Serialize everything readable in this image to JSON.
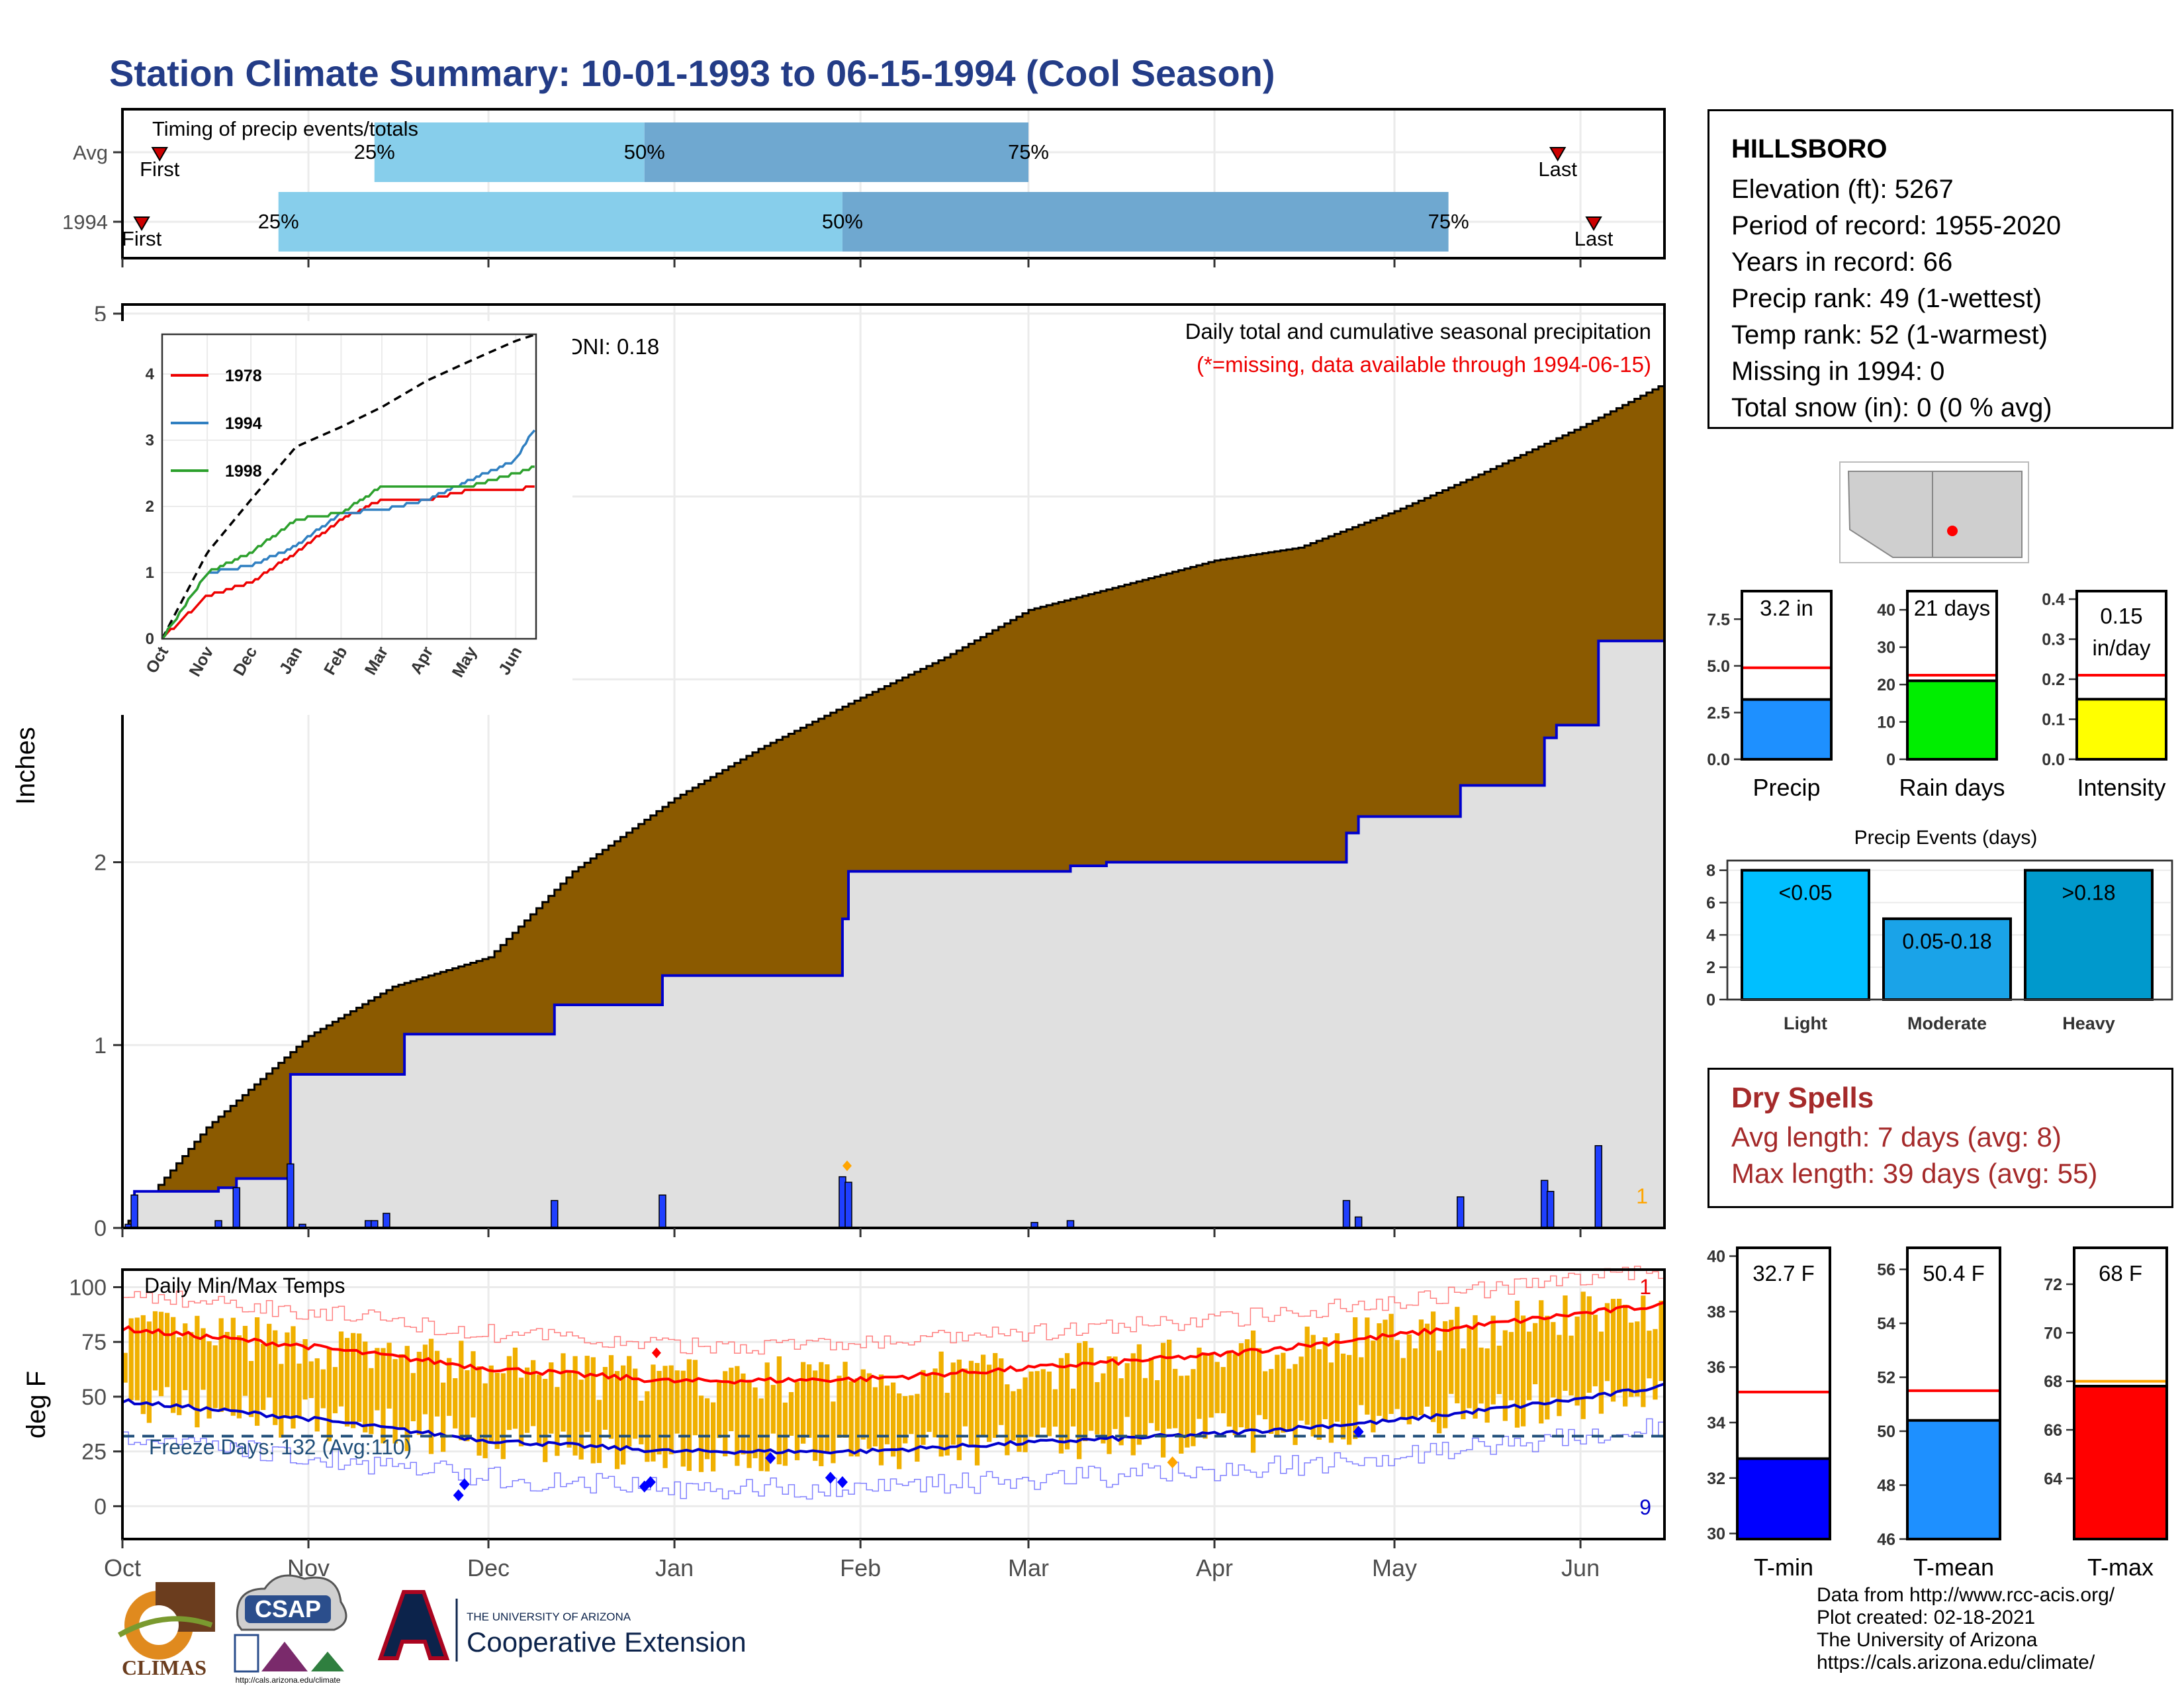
{
  "title": "Station Climate Summary: 10-01-1993 to 06-15-1994 (Cool Season)",
  "timing": {
    "label": "Timing of precip events/totals",
    "rows": [
      {
        "name": "Avg",
        "first_label": "First",
        "last_label": "Last",
        "pct_labels": [
          "25%",
          "50%",
          "75%"
        ],
        "first": "1993-10-05",
        "p25": "1993-11-12",
        "p50": "1993-12-27",
        "p75": "1994-03-01",
        "last": "1994-05-26"
      },
      {
        "name": "1994",
        "first_label": "First",
        "last_label": "Last",
        "pct_labels": [
          "25%",
          "50%",
          "75%"
        ],
        "first": "1993-10-02",
        "p25": "1993-10-27",
        "p50": "1994-01-29",
        "p75": "1994-05-10",
        "last": "1994-06-01"
      }
    ]
  },
  "precip_panel": {
    "ylabel": "Inches",
    "oni": "ONI: 0.18",
    "subtitle": "Daily total and cumulative seasonal precipitation",
    "missing_note": "(*=missing, data available through 1994-06-15)",
    "missing_count": "1",
    "colors": {
      "avg_fill": "#8b5a00",
      "obs_fill": "#e0e0e0",
      "obs_line": "#0000cc",
      "daily_bar": "#1f3fff",
      "missing_marker": "#ffa500"
    }
  },
  "temp_panel": {
    "ylabel": "deg F",
    "label": "Daily Min/Max Temps",
    "freeze_label": "Freeze Days: 132 (Avg:110)",
    "top_count": "1",
    "bottom_count": "9",
    "colors": {
      "range_bar": "#f0b000",
      "avg_max": "#ff0000",
      "avg_min": "#0000cc",
      "freeze_line": "#1f4e79"
    }
  },
  "x_axis": {
    "months": [
      "Oct",
      "Nov",
      "Dec",
      "Jan",
      "Feb",
      "Mar",
      "Apr",
      "May",
      "Jun"
    ]
  },
  "inset": {
    "legend": [
      "1978",
      "1994",
      "1998"
    ],
    "legend_colors": [
      "#ee0000",
      "#2f7fc1",
      "#2ca02c"
    ],
    "months": [
      "Oct",
      "Nov",
      "Dec",
      "Jan",
      "Feb",
      "Mar",
      "Apr",
      "May",
      "Jun"
    ]
  },
  "station": {
    "name": "HILLSBORO",
    "lines": [
      "Elevation (ft): 5267",
      "Period of record: 1955-2020",
      "Years in record: 66",
      "Precip rank: 49 (1-wettest)",
      "Temp rank: 52 (1-warmest)",
      "Missing in 1994: 0",
      "Total snow (in): 0 (0 % avg)"
    ]
  },
  "precip_stats": [
    {
      "label": "Precip",
      "value_text": "3.2 in",
      "value": 3.2,
      "avg": 4.9,
      "ymax": 9.0,
      "ticks": [
        "0.0",
        "2.5",
        "5.0",
        "7.5"
      ],
      "color": "#1e90ff"
    },
    {
      "label": "Rain days",
      "value_text": "21 days",
      "value": 21,
      "avg": 22.5,
      "ymax": 45,
      "ticks": [
        "0",
        "10",
        "20",
        "30",
        "40"
      ],
      "color": "#00ee00"
    },
    {
      "label": "Intensity",
      "value_text": "0.15 in/day",
      "value_lines": [
        "0.15",
        "in/day"
      ],
      "value": 0.153,
      "avg": 0.21,
      "ymax": 0.42,
      "ticks": [
        "0.0",
        "0.1",
        "0.2",
        "0.3",
        "0.4"
      ],
      "color": "#ffff00"
    }
  ],
  "precip_events": {
    "title": "Precip Events (days)",
    "bars": [
      {
        "label": "Light",
        "text": "<0.05",
        "value": 8,
        "color": "#00bfff"
      },
      {
        "label": "Moderate",
        "text": "0.05-0.18",
        "value": 5,
        "color": "#1aa3e8"
      },
      {
        "label": "Heavy",
        "text": ">0.18",
        "value": 8,
        "color": "#0099cc"
      }
    ],
    "ticks": [
      "0",
      "2",
      "4",
      "6",
      "8"
    ]
  },
  "dry_spells": {
    "title": "Dry Spells",
    "avg_line": "Avg length: 7 days (avg: 8)",
    "max_line": "Max length: 39 days (avg: 55)"
  },
  "temp_stats": [
    {
      "label": "T-min",
      "value_text": "32.7 F",
      "value": 32.7,
      "avg": 35.1,
      "ymin": 29.8,
      "ymax": 40.3,
      "ticks": [
        "30",
        "32",
        "34",
        "36",
        "38",
        "40"
      ],
      "color": "#0000ff"
    },
    {
      "label": "T-mean",
      "value_text": "50.4 F",
      "value": 50.4,
      "avg": 51.5,
      "ymin": 46,
      "ymax": 56.8,
      "ticks": [
        "46",
        "48",
        "50",
        "52",
        "54",
        "56"
      ],
      "color": "#1e90ff"
    },
    {
      "label": "T-max",
      "value_text": "68 F",
      "value": 67.8,
      "avg": 68,
      "ymin": 61.5,
      "ymax": 73.5,
      "ticks": [
        "64",
        "66",
        "68",
        "70",
        "72"
      ],
      "color": "#ff0000"
    }
  ],
  "logos": {
    "climas": "CLIMAS",
    "csap": "CSAP",
    "csap_url": "http://cals.arizona.edu/climate",
    "ua_line1": "THE UNIVERSITY OF ARIZONA",
    "ua_line2": "Cooperative Extension",
    "ua_letter": "A"
  },
  "footer": [
    "Data from http://www.rcc-acis.org/",
    "Plot created: 02-18-2021",
    "The University of Arizona",
    "https://cals.arizona.edu/climate/"
  ],
  "chart_data": [
    {
      "type": "area",
      "title": "Daily total and cumulative seasonal precipitation",
      "ylabel": "Inches",
      "ylim": [
        0,
        5
      ],
      "yticks": [
        0,
        1,
        2,
        3,
        4,
        5
      ],
      "xlim": [
        "1993-10-01",
        "1994-06-15"
      ],
      "series": [
        {
          "name": "avg",
          "x": [
            "1993-10-01",
            "1993-10-15",
            "1993-11-01",
            "1993-11-15",
            "1993-12-01",
            "1993-12-15",
            "1994-01-01",
            "1994-01-15",
            "1994-02-01",
            "1994-02-15",
            "1994-03-01",
            "1994-03-15",
            "1994-04-01",
            "1994-04-15",
            "1994-05-01",
            "1994-05-15",
            "1994-06-01",
            "1994-06-15"
          ],
          "values": [
            0.0,
            0.55,
            1.05,
            1.32,
            1.48,
            1.95,
            2.35,
            2.62,
            2.9,
            3.12,
            3.38,
            3.5,
            3.65,
            3.72,
            3.92,
            4.12,
            4.38,
            4.62
          ]
        },
        {
          "name": "1994",
          "x": [
            "1993-10-01",
            "1993-10-03",
            "1993-10-17",
            "1993-10-20",
            "1993-10-29",
            "1993-11-17",
            "1993-12-12",
            "1993-12-30",
            "1994-01-29",
            "1994-01-30",
            "1994-03-02",
            "1994-03-08",
            "1994-03-14",
            "1994-04-23",
            "1994-04-25",
            "1994-05-12",
            "1994-05-26",
            "1994-05-28",
            "1994-06-04"
          ],
          "values": [
            0.0,
            0.2,
            0.22,
            0.27,
            0.84,
            1.06,
            1.22,
            1.38,
            1.69,
            1.95,
            1.95,
            1.98,
            2.0,
            2.16,
            2.25,
            2.42,
            2.68,
            2.75,
            3.21
          ]
        }
      ],
      "daily_precip": {
        "x": [
          "1993-10-02",
          "1993-10-03",
          "1993-10-17",
          "1993-10-20",
          "1993-10-29",
          "1993-10-31",
          "1993-11-11",
          "1993-11-12",
          "1993-11-14",
          "1993-12-12",
          "1993-12-30",
          "1994-01-29",
          "1994-01-30",
          "1994-03-02",
          "1994-03-08",
          "1994-04-23",
          "1994-04-25",
          "1994-05-12",
          "1994-05-26",
          "1994-05-27",
          "1994-06-04"
        ],
        "values": [
          0.02,
          0.18,
          0.04,
          0.22,
          0.35,
          0.02,
          0.04,
          0.04,
          0.08,
          0.15,
          0.18,
          0.28,
          0.25,
          0.03,
          0.04,
          0.15,
          0.06,
          0.17,
          0.26,
          0.2,
          0.45
        ]
      }
    },
    {
      "type": "line",
      "title": "Daily Min/Max Temps",
      "ylabel": "deg F",
      "ylim": [
        -15,
        108
      ],
      "yticks": [
        0,
        25,
        50,
        75,
        100
      ],
      "freeze_line": 32,
      "series": [
        {
          "name": "avg_max",
          "x": [
            "1993-10-01",
            "1993-11-01",
            "1993-12-01",
            "1994-01-01",
            "1994-02-01",
            "1994-03-01",
            "1994-04-01",
            "1994-05-01",
            "1994-06-01",
            "1994-06-15"
          ],
          "values": [
            81,
            73,
            63,
            57,
            58,
            63,
            69,
            78,
            88,
            92
          ]
        },
        {
          "name": "avg_min",
          "x": [
            "1993-10-01",
            "1993-11-01",
            "1993-12-01",
            "1994-01-01",
            "1994-02-01",
            "1994-03-01",
            "1994-04-01",
            "1994-05-01",
            "1994-06-01",
            "1994-06-15"
          ],
          "values": [
            48,
            40,
            30,
            25,
            25,
            29,
            33,
            39,
            49,
            55
          ]
        }
      ]
    },
    {
      "type": "line",
      "ylim": [
        0,
        4.6
      ],
      "series": [
        {
          "name": "avg",
          "x": [
            "1993-10-01",
            "1993-11-01",
            "1993-12-01",
            "1994-01-01",
            "1994-02-01",
            "1994-03-01",
            "1994-04-01",
            "1994-05-01",
            "1994-06-01",
            "1994-06-15"
          ],
          "values": [
            0.0,
            1.3,
            2.1,
            2.9,
            3.2,
            3.5,
            3.9,
            4.2,
            4.5,
            4.6
          ]
        },
        {
          "name": "1978",
          "x": [
            "1993-10-01",
            "1993-11-01",
            "1993-12-01",
            "1994-01-01",
            "1994-02-01",
            "1994-03-01",
            "1994-04-01",
            "1994-05-01",
            "1994-06-01",
            "1994-06-15"
          ],
          "values": [
            0.0,
            0.65,
            0.85,
            1.3,
            1.8,
            2.1,
            2.1,
            2.25,
            2.25,
            2.3
          ]
        },
        {
          "name": "1994",
          "x": [
            "1993-10-01",
            "1993-11-01",
            "1993-12-01",
            "1994-01-01",
            "1994-02-01",
            "1994-03-01",
            "1994-04-01",
            "1994-05-01",
            "1994-06-01",
            "1994-06-15"
          ],
          "values": [
            0.0,
            1.0,
            1.1,
            1.4,
            1.9,
            1.95,
            2.1,
            2.4,
            2.7,
            3.21
          ]
        },
        {
          "name": "1998",
          "x": [
            "1993-10-01",
            "1993-11-01",
            "1993-12-01",
            "1994-01-01",
            "1994-02-01",
            "1994-03-01",
            "1994-04-01",
            "1994-05-01",
            "1994-06-01",
            "1994-06-15"
          ],
          "values": [
            0.0,
            1.0,
            1.3,
            1.8,
            1.9,
            2.3,
            2.3,
            2.3,
            2.5,
            2.6
          ]
        }
      ]
    },
    {
      "type": "bar",
      "categories": [
        "Precip"
      ],
      "values": [
        3.2
      ],
      "avg": 4.9
    },
    {
      "type": "bar",
      "categories": [
        "Rain days"
      ],
      "values": [
        21
      ],
      "avg": 22.5
    },
    {
      "type": "bar",
      "categories": [
        "Intensity"
      ],
      "values": [
        0.15
      ],
      "avg": 0.21
    },
    {
      "type": "bar",
      "title": "Precip Events (days)",
      "categories": [
        "Light",
        "Moderate",
        "Heavy"
      ],
      "values": [
        8,
        5,
        8
      ]
    },
    {
      "type": "bar",
      "categories": [
        "T-min"
      ],
      "values": [
        32.7
      ],
      "avg": 35.1
    },
    {
      "type": "bar",
      "categories": [
        "T-mean"
      ],
      "values": [
        50.4
      ],
      "avg": 51.5
    },
    {
      "type": "bar",
      "categories": [
        "T-max"
      ],
      "values": [
        67.8
      ],
      "avg": 68
    }
  ]
}
